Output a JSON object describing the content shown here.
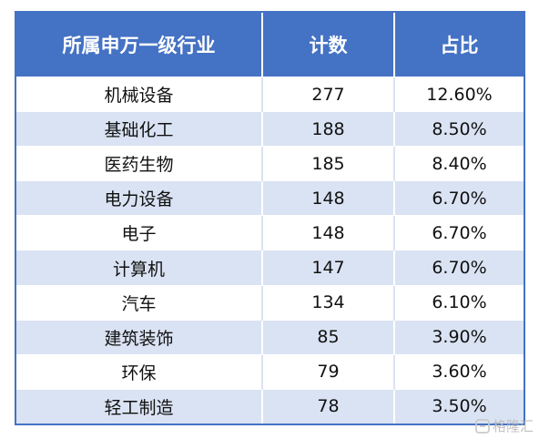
{
  "table": {
    "headers": [
      "所属申万一级行业",
      "计数",
      "占比"
    ],
    "rows": [
      [
        "机械设备",
        "277",
        "12.60%"
      ],
      [
        "基础化工",
        "188",
        "8.50%"
      ],
      [
        "医药生物",
        "185",
        "8.40%"
      ],
      [
        "电力设备",
        "148",
        "6.70%"
      ],
      [
        "电子",
        "148",
        "6.70%"
      ],
      [
        "计算机",
        "147",
        "6.70%"
      ],
      [
        "汽车",
        "134",
        "6.10%"
      ],
      [
        "建筑装饰",
        "85",
        "3.90%"
      ],
      [
        "环保",
        "79",
        "3.60%"
      ],
      [
        "轻工制造",
        "78",
        "3.50%"
      ]
    ]
  },
  "watermark": {
    "text": "格隆汇"
  },
  "colors": {
    "header_bg": "#4472c4",
    "stripe_bg": "#dae3f3"
  }
}
